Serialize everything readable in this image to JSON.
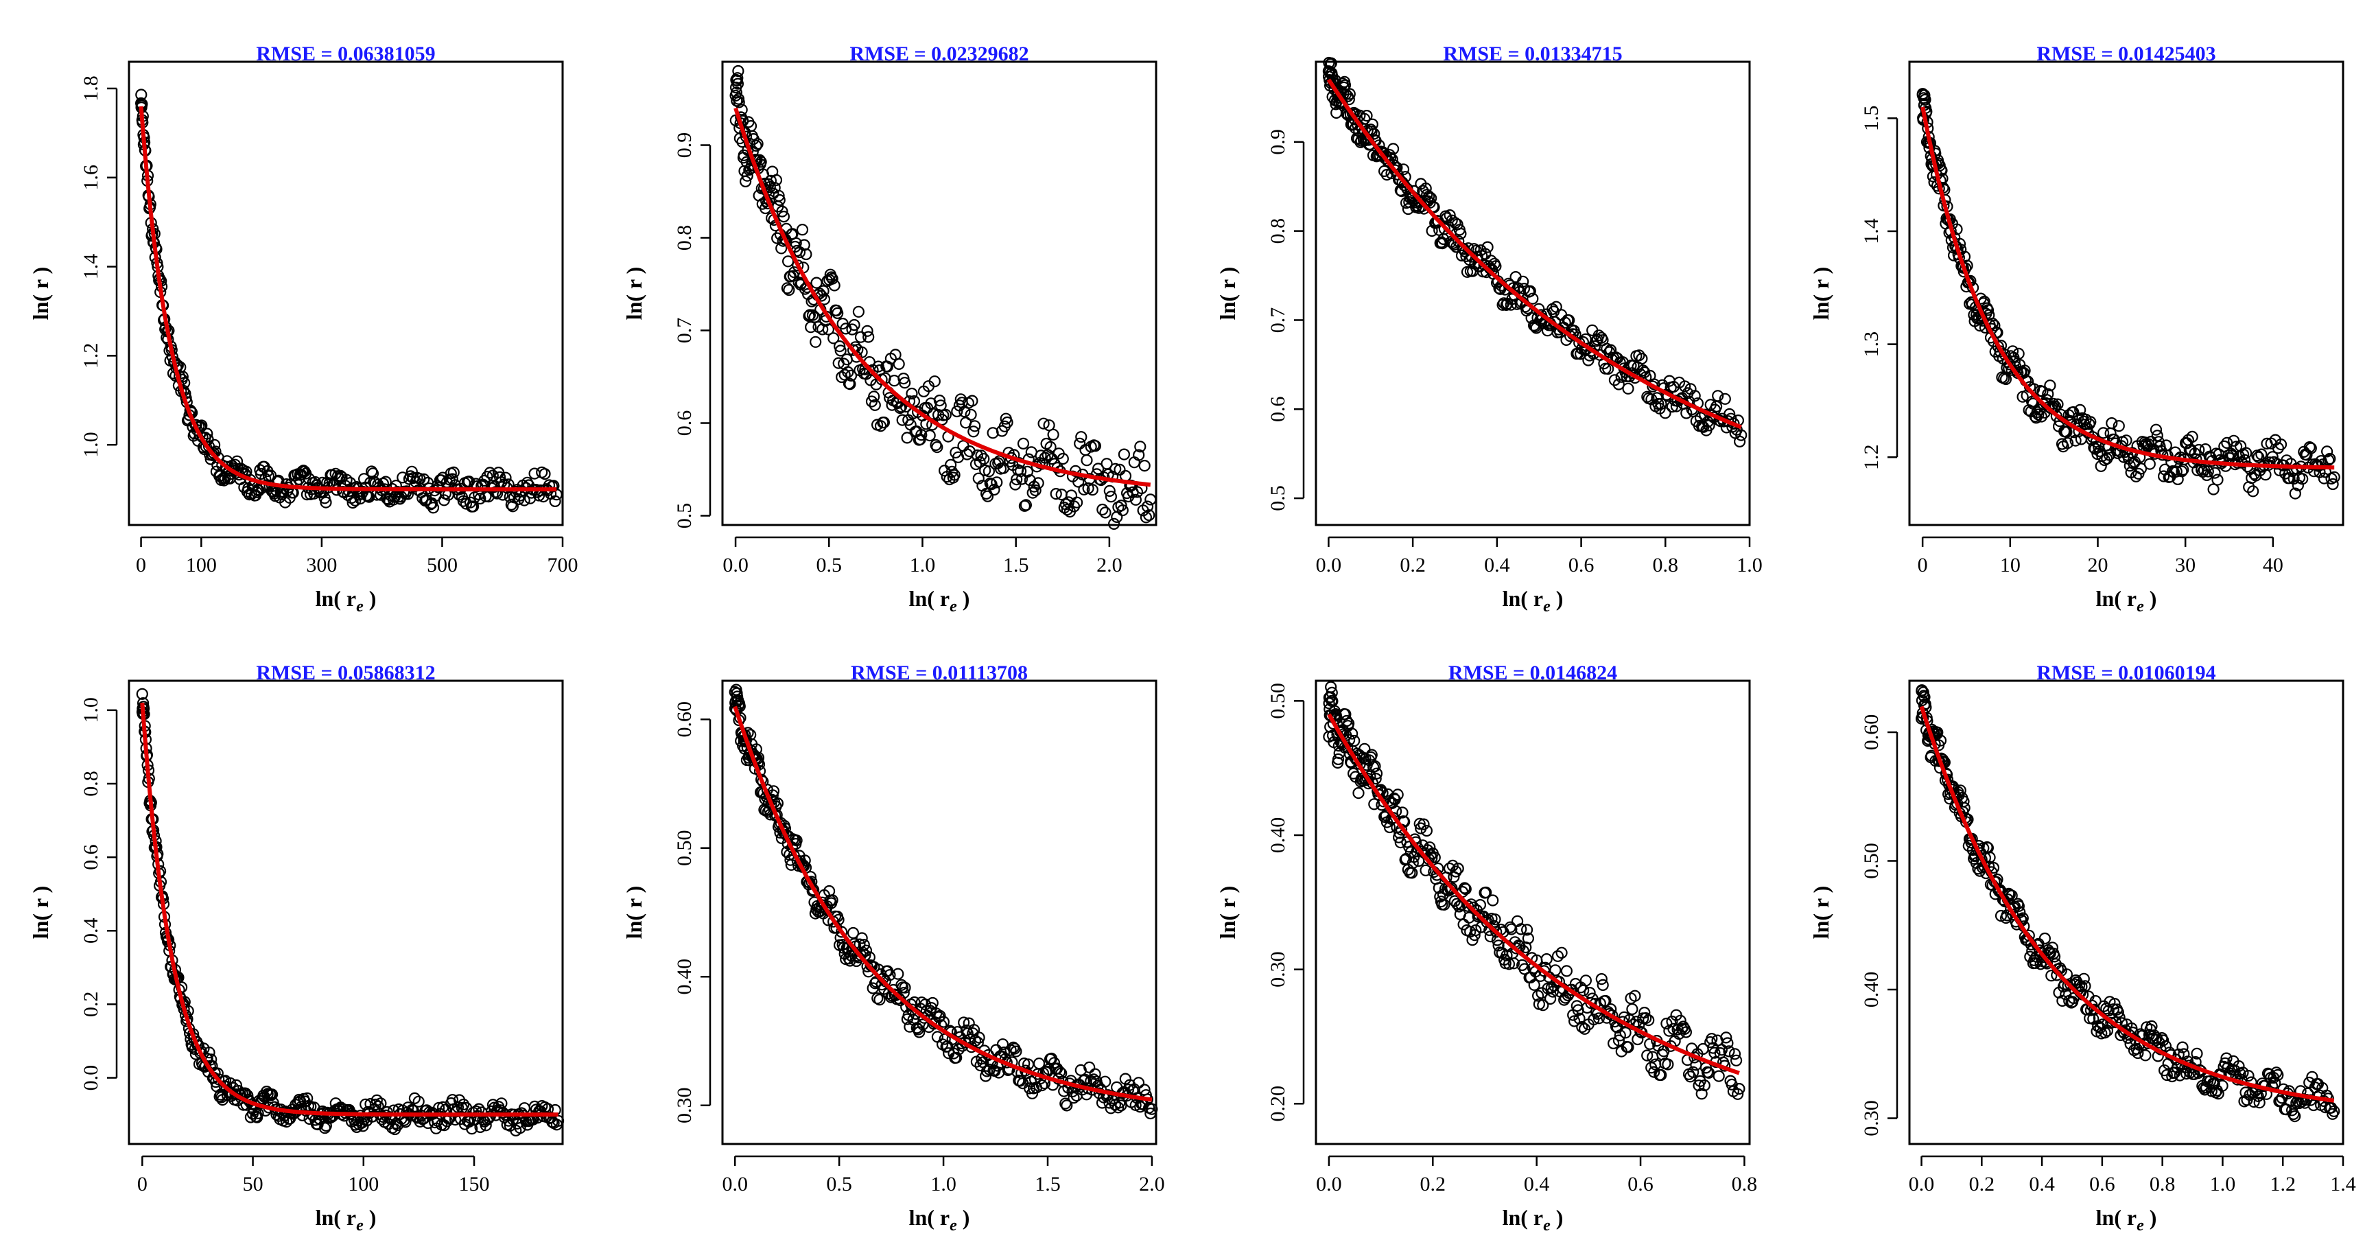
{
  "figure": {
    "colors": {
      "title": "#1a1aff",
      "fit": "#e00000",
      "points": "#000000",
      "axis": "#000000"
    },
    "chart_data": [
      {
        "type": "scatter",
        "title": "RMSE = 0.06381059",
        "xlabel_main": "ln( r",
        "xlabel_sub": "e",
        "xlabel_end": " )",
        "ylabel": "ln( r )",
        "xlim": [
          -20,
          700
        ],
        "ylim": [
          0.82,
          1.86
        ],
        "xticks": [
          0,
          100,
          300,
          500,
          700
        ],
        "xtick_labels": [
          "0",
          "100",
          "300",
          "500",
          "700"
        ],
        "yticks": [
          1.0,
          1.2,
          1.4,
          1.6,
          1.8
        ],
        "ytick_labels": [
          "1.0",
          "1.2",
          "1.4",
          "1.6",
          "1.8"
        ],
        "fit": {
          "a": 0.9,
          "b": 0.86,
          "k": 0.02,
          "xmax": 690
        },
        "scatter": {
          "spread": 0.028,
          "count": 380
        }
      },
      {
        "type": "scatter",
        "title": "RMSE = 0.02329682",
        "xlabel_main": "ln( r",
        "xlabel_sub": "e",
        "xlabel_end": " )",
        "ylabel": "ln( r )",
        "xlim": [
          -0.07,
          2.25
        ],
        "ylim": [
          0.49,
          0.99
        ],
        "xticks": [
          0.0,
          0.5,
          1.0,
          1.5,
          2.0
        ],
        "xtick_labels": [
          "0.0",
          "0.5",
          "1.0",
          "1.5",
          "2.0"
        ],
        "yticks": [
          0.5,
          0.6,
          0.7,
          0.8,
          0.9
        ],
        "ytick_labels": [
          "0.5",
          "0.6",
          "0.7",
          "0.8",
          "0.9"
        ],
        "fit": {
          "a": 0.52,
          "b": 0.42,
          "k": 1.55,
          "xmax": 2.22
        },
        "scatter": {
          "spread": 0.035,
          "count": 380
        }
      },
      {
        "type": "scatter",
        "title": "RMSE = 0.01334715",
        "xlabel_main": "ln( r",
        "xlabel_sub": "e",
        "xlabel_end": " )",
        "ylabel": "ln( r )",
        "xlim": [
          -0.03,
          1.0
        ],
        "ylim": [
          0.47,
          0.99
        ],
        "xticks": [
          0.0,
          0.2,
          0.4,
          0.6,
          0.8,
          1.0
        ],
        "xtick_labels": [
          "0.0",
          "0.2",
          "0.4",
          "0.6",
          "0.8",
          "1.0"
        ],
        "yticks": [
          0.5,
          0.6,
          0.7,
          0.8,
          0.9
        ],
        "ytick_labels": [
          "0.5",
          "0.6",
          "0.7",
          "0.8",
          "0.9"
        ],
        "fit": {
          "a": 0.44,
          "b": 0.53,
          "k": 1.36,
          "xmax": 0.98
        },
        "scatter": {
          "spread": 0.018,
          "count": 380
        }
      },
      {
        "type": "scatter",
        "title": "RMSE = 0.01425403",
        "xlabel_main": "ln( r",
        "xlabel_sub": "e",
        "xlabel_end": " )",
        "ylabel": "ln( r )",
        "xlim": [
          -1.5,
          48
        ],
        "ylim": [
          1.14,
          1.55
        ],
        "xticks": [
          0,
          10,
          20,
          30,
          40
        ],
        "xtick_labels": [
          "0",
          "10",
          "20",
          "30",
          "40"
        ],
        "yticks": [
          1.2,
          1.3,
          1.4,
          1.5
        ],
        "ytick_labels": [
          "1.2",
          "1.3",
          "1.4",
          "1.5"
        ],
        "fit": {
          "a": 1.19,
          "b": 0.32,
          "k": 0.125,
          "xmax": 47
        },
        "scatter": {
          "spread": 0.016,
          "count": 380
        }
      },
      {
        "type": "scatter",
        "title": "RMSE = 0.05868312",
        "xlabel_main": "ln( r",
        "xlabel_sub": "e",
        "xlabel_end": " )",
        "ylabel": "ln( r )",
        "xlim": [
          -6,
          190
        ],
        "ylim": [
          -0.18,
          1.08
        ],
        "xticks": [
          0,
          50,
          100,
          150
        ],
        "xtick_labels": [
          "0",
          "50",
          "100",
          "150"
        ],
        "yticks": [
          0.0,
          0.2,
          0.4,
          0.6,
          0.8,
          1.0
        ],
        "ytick_labels": [
          "0.0",
          "0.2",
          "0.4",
          "0.6",
          "0.8",
          "1.0"
        ],
        "fit": {
          "a": -0.1,
          "b": 1.12,
          "k": 0.072,
          "xmax": 188
        },
        "scatter": {
          "spread": 0.03,
          "count": 380
        }
      },
      {
        "type": "scatter",
        "title": "RMSE = 0.01113708",
        "xlabel_main": "ln( r",
        "xlabel_sub": "e",
        "xlabel_end": " )",
        "ylabel": "ln( r )",
        "xlim": [
          -0.06,
          2.02
        ],
        "ylim": [
          0.27,
          0.63
        ],
        "xticks": [
          0.0,
          0.5,
          1.0,
          1.5,
          2.0
        ],
        "xtick_labels": [
          "0.0",
          "0.5",
          "1.0",
          "1.5",
          "2.0"
        ],
        "yticks": [
          0.3,
          0.4,
          0.5,
          0.6
        ],
        "ytick_labels": [
          "0.30",
          "0.40",
          "0.50",
          "0.60"
        ],
        "fit": {
          "a": 0.29,
          "b": 0.32,
          "k": 1.55,
          "xmax": 2.0
        },
        "scatter": {
          "spread": 0.012,
          "count": 380
        }
      },
      {
        "type": "scatter",
        "title": "RMSE = 0.0146824",
        "xlabel_main": "ln( r",
        "xlabel_sub": "e",
        "xlabel_end": " )",
        "ylabel": "ln( r )",
        "xlim": [
          -0.025,
          0.81
        ],
        "ylim": [
          0.17,
          0.515
        ],
        "xticks": [
          0.0,
          0.2,
          0.4,
          0.6,
          0.8
        ],
        "xtick_labels": [
          "0.0",
          "0.2",
          "0.4",
          "0.6",
          "0.8"
        ],
        "yticks": [
          0.2,
          0.3,
          0.4,
          0.5
        ],
        "ytick_labels": [
          "0.20",
          "0.30",
          "0.40",
          "0.50"
        ],
        "fit": {
          "a": 0.16,
          "b": 0.33,
          "k": 2.1,
          "xmax": 0.79
        },
        "scatter": {
          "spread": 0.018,
          "count": 380
        }
      },
      {
        "type": "scatter",
        "title": "RMSE = 0.01060194",
        "xlabel_main": "ln( r",
        "xlabel_sub": "e",
        "xlabel_end": " )",
        "ylabel": "ln( r )",
        "xlim": [
          -0.04,
          1.4
        ],
        "ylim": [
          0.28,
          0.64
        ],
        "xticks": [
          0.0,
          0.2,
          0.4,
          0.6,
          0.8,
          1.0,
          1.2,
          1.4
        ],
        "xtick_labels": [
          "0.0",
          "0.2",
          "0.4",
          "0.6",
          "0.8",
          "1.0",
          "1.2",
          "1.4"
        ],
        "yticks": [
          0.3,
          0.4,
          0.5,
          0.6
        ],
        "ytick_labels": [
          "0.30",
          "0.40",
          "0.50",
          "0.60"
        ],
        "fit": {
          "a": 0.3,
          "b": 0.32,
          "k": 2.3,
          "xmax": 1.37
        },
        "scatter": {
          "spread": 0.012,
          "count": 380
        }
      }
    ]
  }
}
